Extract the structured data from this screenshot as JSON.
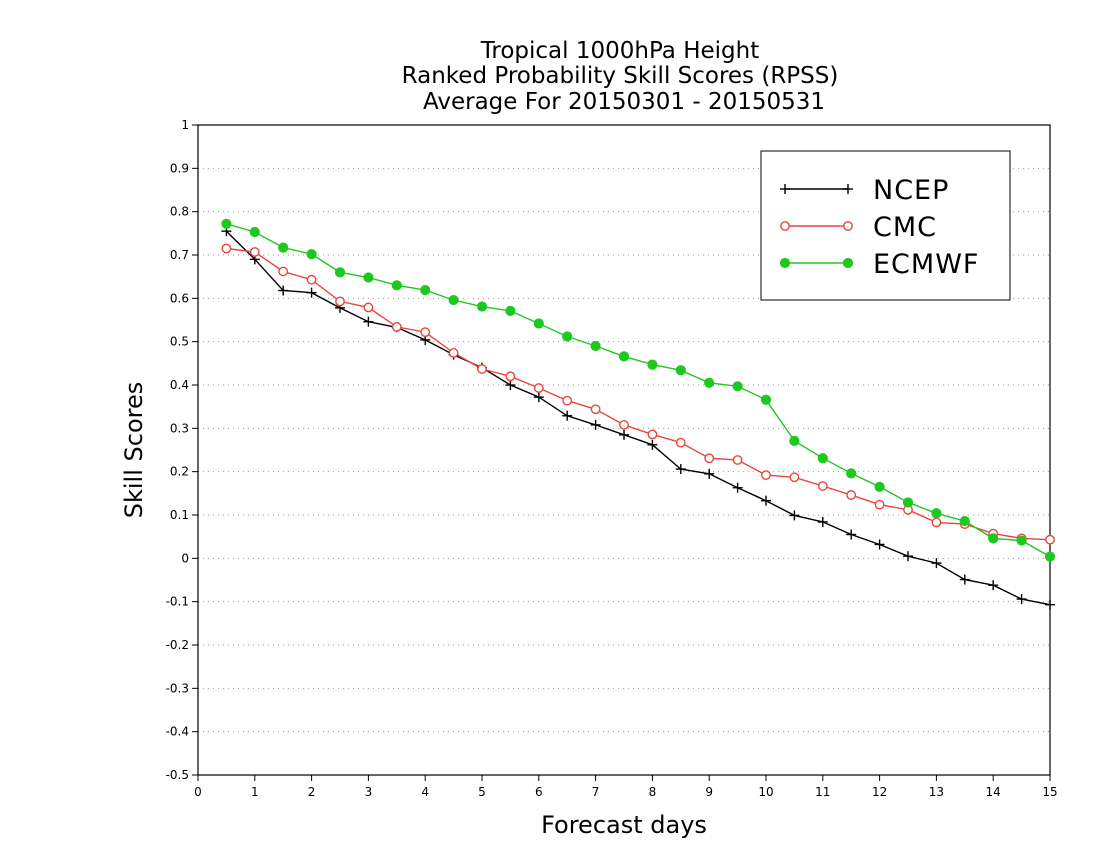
{
  "chart_data": {
    "type": "line",
    "title_lines": [
      "Tropical 1000hPa Height",
      "Ranked Probability Skill Scores (RPSS)",
      "Average For 20150301 - 20150531"
    ],
    "xlabel": "Forecast days",
    "ylabel": "Skill Scores",
    "xlim": [
      0,
      15
    ],
    "ylim": [
      -0.5,
      1
    ],
    "x_ticks": [
      0,
      1,
      2,
      3,
      4,
      5,
      6,
      7,
      8,
      9,
      10,
      11,
      12,
      13,
      14,
      15
    ],
    "y_ticks": [
      -0.5,
      -0.4,
      -0.3,
      -0.2,
      -0.1,
      0,
      0.1,
      0.2,
      0.3,
      0.4,
      0.5,
      0.6,
      0.7,
      0.8,
      0.9,
      1
    ],
    "y_tick_labels": [
      "-0.5",
      "-0.4",
      "-0.3",
      "-0.2",
      "-0.1",
      "0",
      "0.1",
      "0.2",
      "0.3",
      "0.4",
      "0.5",
      "0.6",
      "0.7",
      "0.8",
      "0.9",
      "1"
    ],
    "grid": "horizontal dotted",
    "legend_position": "top-right",
    "x": [
      0.5,
      1,
      1.5,
      2,
      2.5,
      3,
      3.5,
      4,
      4.5,
      5,
      5.5,
      6,
      6.5,
      7,
      7.5,
      8,
      8.5,
      9,
      9.5,
      10,
      10.5,
      11,
      11.5,
      12,
      12.5,
      13,
      13.5,
      14,
      14.5,
      15
    ],
    "series": [
      {
        "name": "NCEP",
        "color": "#000000",
        "marker": "plus",
        "values": [
          0.755,
          0.69,
          0.618,
          0.613,
          0.578,
          0.546,
          0.533,
          0.504,
          0.47,
          0.44,
          0.4,
          0.372,
          0.329,
          0.308,
          0.285,
          0.262,
          0.206,
          0.195,
          0.163,
          0.133,
          0.099,
          0.084,
          0.055,
          0.032,
          0.005,
          -0.011,
          -0.049,
          -0.062,
          -0.094,
          -0.107
        ]
      },
      {
        "name": "CMC",
        "color": "#e8453c",
        "marker": "open-circle",
        "values": [
          0.715,
          0.707,
          0.662,
          0.643,
          0.593,
          0.579,
          0.534,
          0.522,
          0.474,
          0.437,
          0.42,
          0.393,
          0.364,
          0.344,
          0.308,
          0.286,
          0.267,
          0.231,
          0.227,
          0.192,
          0.187,
          0.167,
          0.146,
          0.124,
          0.112,
          0.083,
          0.079,
          0.057,
          0.046,
          0.043
        ]
      },
      {
        "name": "ECMWF",
        "color": "#1fc81f",
        "marker": "filled-circle",
        "values": [
          0.772,
          0.753,
          0.717,
          0.702,
          0.66,
          0.648,
          0.63,
          0.619,
          0.596,
          0.581,
          0.571,
          0.542,
          0.512,
          0.49,
          0.466,
          0.447,
          0.434,
          0.405,
          0.397,
          0.366,
          0.271,
          0.231,
          0.196,
          0.165,
          0.129,
          0.104,
          0.086,
          0.046,
          0.041,
          0.004
        ]
      }
    ]
  }
}
